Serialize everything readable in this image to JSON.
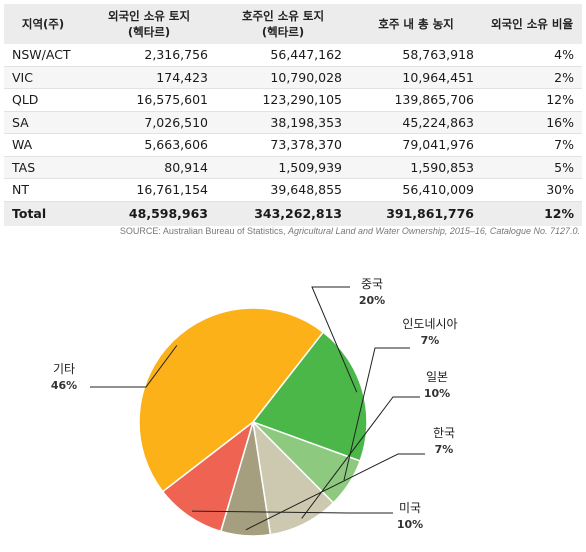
{
  "table": {
    "headers": [
      "지역(주)",
      "외국인 소유 토지\n(헥타르)",
      "호주인 소유 토지\n(헥타르)",
      "호주 내 총 농지",
      "외국인 소유 비율"
    ],
    "rows": [
      [
        "NSW/ACT",
        "2,316,756",
        "56,447,162",
        "58,763,918",
        "4%"
      ],
      [
        "VIC",
        "174,423",
        "10,790,028",
        "10,964,451",
        "2%"
      ],
      [
        "QLD",
        "16,575,601",
        "123,290,105",
        "139,865,706",
        "12%"
      ],
      [
        "SA",
        "7,026,510",
        "38,198,353",
        "45,224,863",
        "16%"
      ],
      [
        "WA",
        "5,663,606",
        "73,378,370",
        "79,041,976",
        "7%"
      ],
      [
        "TAS",
        "80,914",
        "1,509,939",
        "1,590,853",
        "5%"
      ],
      [
        "NT",
        "16,761,154",
        "39,648,855",
        "56,410,009",
        "30%"
      ]
    ],
    "total": [
      "Total",
      "48,598,963",
      "343,262,813",
      "391,861,776",
      "12%"
    ]
  },
  "source": {
    "prefix": "SOURCE:  Australian Bureau of Statistics, ",
    "title": "Agricultural Land and Water Ownership, 2015–16, Catalogue No. 7127.0."
  },
  "chart_data": {
    "type": "pie",
    "title": "",
    "slices": [
      {
        "label": "중국",
        "value": 20,
        "pct_label": "20%",
        "color": "#4bb749"
      },
      {
        "label": "인도네시아",
        "value": 7,
        "pct_label": "7%",
        "color": "#8dc97e"
      },
      {
        "label": "일본",
        "value": 10,
        "pct_label": "10%",
        "color": "#cdc8b0"
      },
      {
        "label": "한국",
        "value": 7,
        "pct_label": "7%",
        "color": "#a59f7f"
      },
      {
        "label": "미국",
        "value": 10,
        "pct_label": "10%",
        "color": "#ee6351"
      },
      {
        "label": "기타",
        "value": 46,
        "pct_label": "46%",
        "color": "#fbb117"
      }
    ],
    "start_angle_deg": 38
  }
}
